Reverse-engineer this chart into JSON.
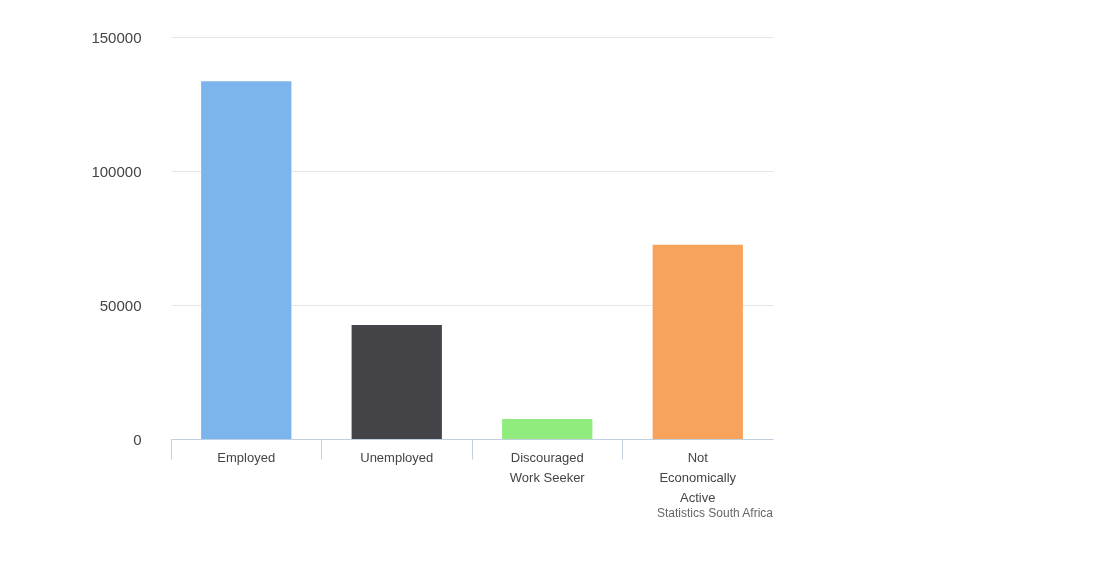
{
  "chart_data": {
    "type": "bar",
    "categories": [
      "Employed",
      "Unemployed",
      "Discouraged Work Seeker",
      "Not Economically Active"
    ],
    "colors": [
      "#7cb5ec",
      "#434348",
      "#90ed7d",
      "#f7a35c"
    ],
    "values": [
      133500,
      42500,
      7500,
      72500
    ],
    "ylim": [
      0,
      150000
    ],
    "yticks": [
      0,
      50000,
      100000,
      150000
    ],
    "grid": "y",
    "annotations": [
      "Statistics South Africa"
    ]
  }
}
